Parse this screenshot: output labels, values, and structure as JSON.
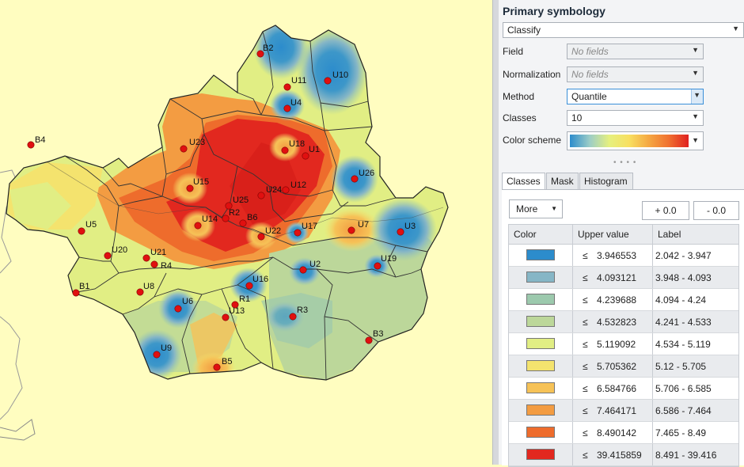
{
  "map": {
    "background": "#fffdc0",
    "sites": [
      {
        "id": "B2"
      },
      {
        "id": "U11"
      },
      {
        "id": "U10"
      },
      {
        "id": "U4"
      },
      {
        "id": "B4"
      },
      {
        "id": "U23"
      },
      {
        "id": "U18"
      },
      {
        "id": "U1"
      },
      {
        "id": "U26"
      },
      {
        "id": "U15"
      },
      {
        "id": "U24"
      },
      {
        "id": "U12"
      },
      {
        "id": "U25"
      },
      {
        "id": "R2"
      },
      {
        "id": "U14"
      },
      {
        "id": "B6"
      },
      {
        "id": "U17"
      },
      {
        "id": "U7"
      },
      {
        "id": "U3"
      },
      {
        "id": "U5"
      },
      {
        "id": "U22"
      },
      {
        "id": "U20"
      },
      {
        "id": "U21"
      },
      {
        "id": "R4"
      },
      {
        "id": "U2"
      },
      {
        "id": "U19"
      },
      {
        "id": "B1"
      },
      {
        "id": "U8"
      },
      {
        "id": "U16"
      },
      {
        "id": "R1"
      },
      {
        "id": "U6"
      },
      {
        "id": "U13"
      },
      {
        "id": "R3"
      },
      {
        "id": "B3"
      },
      {
        "id": "U9"
      },
      {
        "id": "B5"
      }
    ]
  },
  "panel": {
    "title": "Primary symbology",
    "renderer": "Classify",
    "field_label": "Field",
    "field_value": "No fields",
    "normalization_label": "Normalization",
    "normalization_value": "No fields",
    "method_label": "Method",
    "method_value": "Quantile",
    "classes_label": "Classes",
    "classes_value": "10",
    "color_scheme_label": "Color scheme",
    "tabs": [
      "Classes",
      "Mask",
      "Histogram"
    ],
    "more_label": "More",
    "plus_label": "+ 0.0",
    "minus_label": "- 0.0",
    "columns": [
      "Color",
      "Upper value",
      "Label"
    ],
    "classes": [
      {
        "color": "#2c8ccc",
        "le": "≤",
        "upper": "3.946553",
        "label": "2.042 - 3.947"
      },
      {
        "color": "#86b6c6",
        "le": "≤",
        "upper": "4.093121",
        "label": "3.948 - 4.093"
      },
      {
        "color": "#9cc9ad",
        "le": "≤",
        "upper": "4.239688",
        "label": "4.094 - 4.24"
      },
      {
        "color": "#bcd79a",
        "le": "≤",
        "upper": "4.532823",
        "label": "4.241 - 4.533"
      },
      {
        "color": "#e1ee84",
        "le": "≤",
        "upper": "5.119092",
        "label": "4.534 - 5.119"
      },
      {
        "color": "#f4e36e",
        "le": "≤",
        "upper": "5.705362",
        "label": "5.12 - 5.705"
      },
      {
        "color": "#f6c257",
        "le": "≤",
        "upper": "6.584766",
        "label": "5.706 - 6.585"
      },
      {
        "color": "#f39c42",
        "le": "≤",
        "upper": "7.464171",
        "label": "6.586 - 7.464"
      },
      {
        "color": "#ee6c2c",
        "le": "≤",
        "upper": "8.490142",
        "label": "7.465 - 8.49"
      },
      {
        "color": "#e2281f",
        "le": "≤",
        "upper": "39.415859",
        "label": "8.491 - 39.416"
      }
    ]
  }
}
